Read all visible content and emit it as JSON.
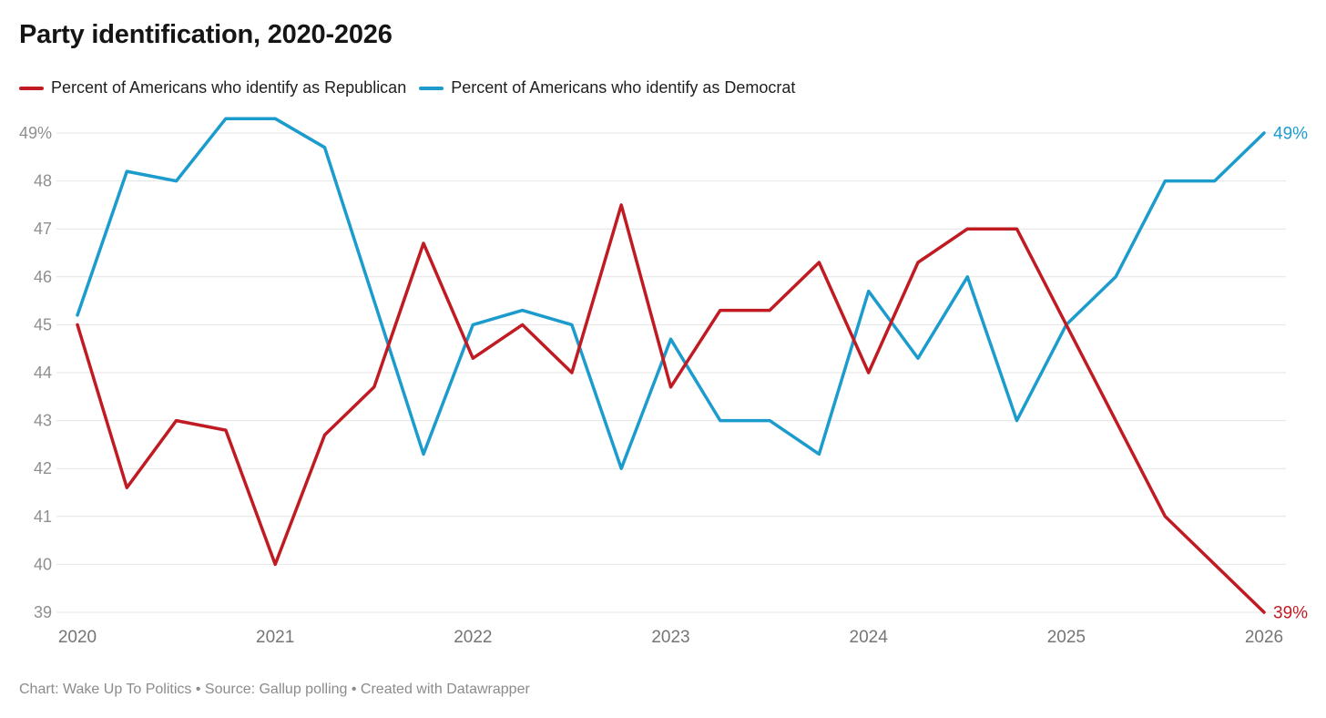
{
  "card": {
    "title": "Party identification, 2020-2026",
    "footer": "Chart: Wake Up To Politics • Source: Gallup polling • Created with Datawrapper"
  },
  "chart_data": {
    "type": "line",
    "title": "Party identification, 2020-2026",
    "xlabel": "",
    "ylabel": "Percent of Americans",
    "xlim": [
      2020,
      2026
    ],
    "ylim": [
      39,
      49.3
    ],
    "grid": true,
    "legend_position": "top",
    "x": [
      2020,
      2020.25,
      2020.5,
      2020.75,
      2021,
      2021.25,
      2021.5,
      2021.75,
      2022,
      2022.25,
      2022.5,
      2022.75,
      2023,
      2023.25,
      2023.5,
      2023.75,
      2024,
      2024.25,
      2024.5,
      2024.75,
      2025,
      2025.25,
      2025.5,
      2025.75,
      2026
    ],
    "series": [
      {
        "key": "republican",
        "name": "Percent of Americans who identify as Republican",
        "color": "#c01b23",
        "end_label": "39%",
        "values": [
          45,
          41.6,
          43,
          42.8,
          40,
          42.7,
          43.7,
          46.7,
          44.3,
          45,
          44,
          47.5,
          43.7,
          45.3,
          45.3,
          46.3,
          44,
          46.3,
          47,
          47,
          45,
          43,
          41,
          40,
          39
        ]
      },
      {
        "key": "democrat",
        "name": "Percent of Americans who identify as Democrat",
        "color": "#1c9bcd",
        "end_label": "49%",
        "values": [
          45.2,
          48.2,
          48,
          49.3,
          49.3,
          48.7,
          45.5,
          42.3,
          45,
          45.3,
          45,
          42,
          44.7,
          43,
          43,
          42.3,
          45.7,
          44.3,
          46,
          43,
          45,
          46,
          48,
          48,
          49
        ]
      }
    ],
    "y_ticks": [
      {
        "value": 49,
        "label": "49%"
      },
      {
        "value": 48,
        "label": "48"
      },
      {
        "value": 47,
        "label": "47"
      },
      {
        "value": 46,
        "label": "46"
      },
      {
        "value": 45,
        "label": "45"
      },
      {
        "value": 44,
        "label": "44"
      },
      {
        "value": 43,
        "label": "43"
      },
      {
        "value": 42,
        "label": "42"
      },
      {
        "value": 41,
        "label": "41"
      },
      {
        "value": 40,
        "label": "40"
      },
      {
        "value": 39,
        "label": "39"
      }
    ],
    "x_ticks": [
      {
        "value": 2020,
        "label": "2020"
      },
      {
        "value": 2021,
        "label": "2021"
      },
      {
        "value": 2022,
        "label": "2022"
      },
      {
        "value": 2023,
        "label": "2023"
      },
      {
        "value": 2024,
        "label": "2024"
      },
      {
        "value": 2025,
        "label": "2025"
      },
      {
        "value": 2026,
        "label": "2026"
      }
    ]
  }
}
